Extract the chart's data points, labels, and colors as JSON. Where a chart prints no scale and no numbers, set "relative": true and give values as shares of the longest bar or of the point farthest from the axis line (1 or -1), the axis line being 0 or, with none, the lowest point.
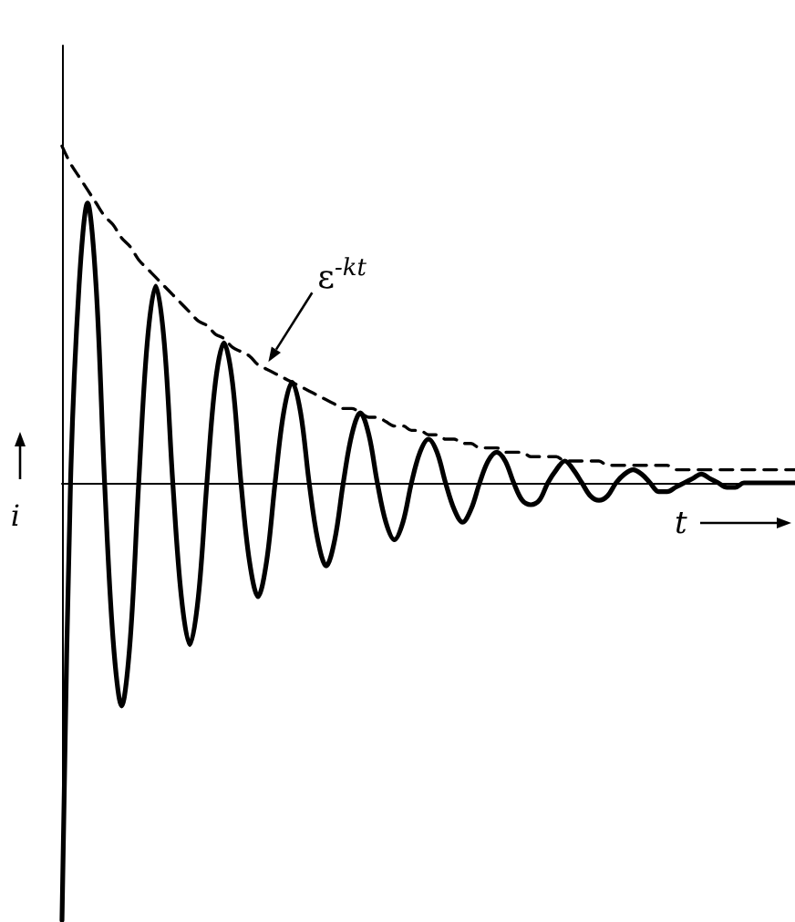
{
  "chart_data": {
    "type": "line",
    "xlabel": "t",
    "ylabel": "i",
    "relative": true,
    "legend": false,
    "grid": false,
    "tick_labels": false,
    "categories": [
      null,
      null,
      null,
      null,
      null,
      null,
      null,
      null,
      null,
      null,
      null,
      null,
      null,
      null,
      null,
      null,
      null,
      null,
      null,
      null,
      null,
      null,
      null,
      null,
      null,
      null,
      null,
      null,
      null,
      null,
      null,
      null,
      null,
      null,
      null,
      null,
      null,
      null,
      null,
      null,
      null,
      null,
      null,
      null,
      null,
      null,
      null,
      null,
      null,
      null,
      null,
      null,
      null,
      null,
      null,
      null,
      null,
      null,
      null,
      null,
      null,
      null,
      null,
      null,
      null,
      null,
      null,
      null,
      null,
      null,
      null,
      null,
      null,
      null,
      null,
      null,
      null,
      null,
      null,
      null,
      null,
      null,
      null,
      null,
      null,
      null,
      null
    ],
    "series": [
      {
        "color": "#000000",
        "line_style": "solid",
        "values": [
          -1,
          0,
          0.45,
          0.64,
          0.45,
          0,
          -0.36,
          -0.51,
          -0.36,
          0,
          0.32,
          0.45,
          0.32,
          0,
          -0.26,
          -0.37,
          -0.26,
          0,
          0.23,
          0.32,
          0.23,
          0,
          -0.18,
          -0.26,
          -0.18,
          0,
          0.16,
          0.23,
          0.16,
          0,
          -0.13,
          -0.19,
          -0.13,
          0,
          0.11,
          0.16,
          0.11,
          0,
          -0.09,
          -0.13,
          -0.09,
          0,
          0.07,
          0.1,
          0.07,
          0,
          -0.06,
          -0.09,
          -0.06,
          0,
          0.05,
          0.07,
          0.05,
          0,
          -0.04,
          -0.05,
          -0.04,
          0,
          0.03,
          0.05,
          0.03,
          0,
          -0.03,
          -0.04,
          -0.03,
          0,
          0.02,
          0.03,
          0.02,
          0,
          -0.02,
          -0.02,
          -0.01,
          0,
          0.01,
          0.02,
          0.01,
          0,
          -0.01,
          -0.01,
          0,
          0,
          0,
          0,
          0,
          0,
          0
        ]
      },
      {
        "name": "ε$^{-kt}$",
        "color": "#000000",
        "line_style": "dashed",
        "values": [
          0.77,
          0.73,
          0.7,
          0.67,
          0.64,
          0.61,
          0.59,
          0.56,
          0.54,
          0.51,
          0.49,
          0.47,
          0.45,
          0.43,
          0.41,
          0.39,
          0.37,
          0.36,
          0.34,
          0.33,
          0.31,
          0.3,
          0.29,
          0.27,
          0.26,
          0.25,
          0.24,
          0.23,
          0.22,
          0.21,
          0.2,
          0.19,
          0.18,
          0.17,
          0.17,
          0.16,
          0.15,
          0.15,
          0.14,
          0.13,
          0.13,
          0.12,
          0.12,
          0.11,
          0.11,
          0.1,
          0.1,
          0.09,
          0.09,
          0.08,
          0.08,
          0.08,
          0.07,
          0.07,
          0.07,
          0.06,
          0.06,
          0.06,
          0.06,
          0.05,
          0.05,
          0.05,
          0.05,
          0.05,
          0.04,
          0.04,
          0.04,
          0.04,
          0.04,
          0.04,
          0.04,
          0.04,
          0.03,
          0.03,
          0.03,
          0.03,
          0.03,
          0.03,
          0.03,
          0.03,
          0.03,
          0.03,
          0.03,
          0.03,
          0.03,
          0.03,
          0.03
        ]
      }
    ]
  }
}
